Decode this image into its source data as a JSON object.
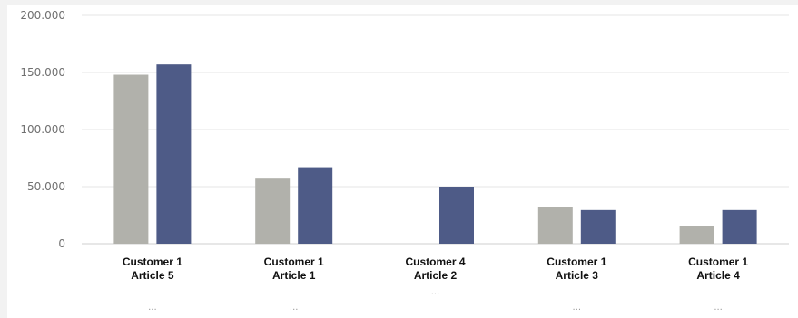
{
  "chart_data": {
    "type": "bar",
    "categories": [
      {
        "line1": "Customer 1",
        "line2": "Article 5",
        "more": "..."
      },
      {
        "line1": "Customer 1",
        "line2": "Article 1",
        "more": "..."
      },
      {
        "line1": "Customer 4",
        "line2": "Article 2",
        "more": "..."
      },
      {
        "line1": "Customer 1",
        "line2": "Article 3",
        "more": "..."
      },
      {
        "line1": "Customer 1",
        "line2": "Article 4",
        "more": "..."
      }
    ],
    "series": [
      {
        "color": "#b1b1ab",
        "values": [
          148000,
          57000,
          0,
          32500,
          15500
        ]
      },
      {
        "color": "#4e5b87",
        "values": [
          157000,
          67000,
          50000,
          29500,
          29500
        ]
      }
    ],
    "ylim": [
      0,
      200000
    ],
    "yticks": [
      0,
      50000,
      100000,
      150000,
      200000
    ],
    "ytick_labels": [
      "0",
      "50.000",
      "100.000",
      "150.000",
      "200.000"
    ],
    "grid": true,
    "colors": {
      "grid": "#e4e4e4",
      "axis": "#cfcfcf",
      "background": "#ffffff"
    }
  }
}
